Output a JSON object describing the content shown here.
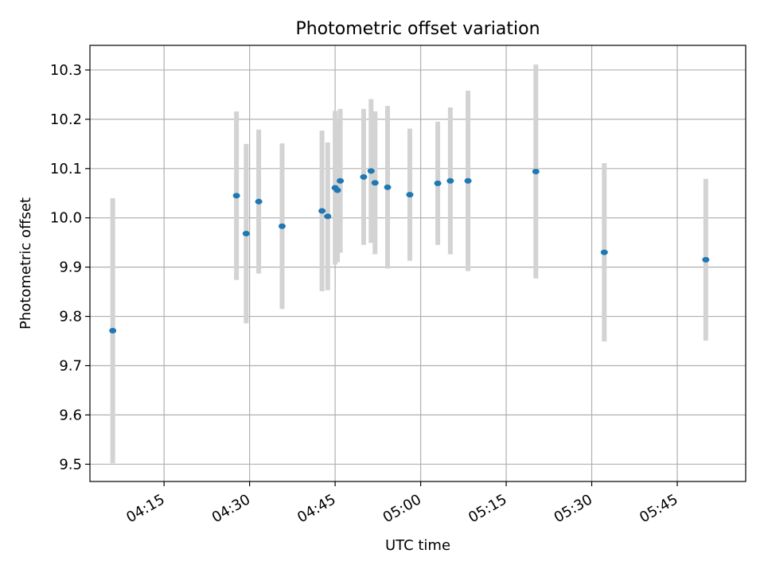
{
  "chart_data": {
    "type": "scatter",
    "title": "Photometric offset variation",
    "xlabel": "UTC time",
    "ylabel": "Photometric offset",
    "grid": true,
    "x_is_time": true,
    "xlim": [
      "04:02",
      "05:57"
    ],
    "ylim": [
      9.465,
      10.35
    ],
    "x_ticks": [
      "04:15",
      "04:30",
      "04:45",
      "05:00",
      "05:15",
      "05:30",
      "05:45"
    ],
    "y_ticks": [
      "9.5",
      "9.6",
      "9.7",
      "9.8",
      "9.9",
      "10.0",
      "10.1",
      "10.2",
      "10.3"
    ],
    "colors": {
      "point": "#1f77b4",
      "errorbar": "#d3d3d3",
      "grid": "#b0b0b0"
    },
    "points": [
      {
        "x": "04:06",
        "y": 9.771,
        "yerr": 0.269
      },
      {
        "x": "04:27.7",
        "y": 10.045,
        "yerr": 0.171
      },
      {
        "x": "04:29.4",
        "y": 9.968,
        "yerr": 0.182
      },
      {
        "x": "04:31.6",
        "y": 10.033,
        "yerr": 0.146
      },
      {
        "x": "04:35.7",
        "y": 9.983,
        "yerr": 0.168
      },
      {
        "x": "04:42.7",
        "y": 10.014,
        "yerr": 0.163
      },
      {
        "x": "04:43.7",
        "y": 10.003,
        "yerr": 0.15
      },
      {
        "x": "04:45.0",
        "y": 10.061,
        "yerr": 0.156
      },
      {
        "x": "04:45.4",
        "y": 10.056,
        "yerr": 0.146
      },
      {
        "x": "04:45.9",
        "y": 10.075,
        "yerr": 0.146
      },
      {
        "x": "04:50.0",
        "y": 10.083,
        "yerr": 0.138
      },
      {
        "x": "04:51.3",
        "y": 10.095,
        "yerr": 0.146
      },
      {
        "x": "04:52.0",
        "y": 10.071,
        "yerr": 0.145
      },
      {
        "x": "04:54.2",
        "y": 10.062,
        "yerr": 0.165
      },
      {
        "x": "04:58.1",
        "y": 10.047,
        "yerr": 0.134
      },
      {
        "x": "05:03.0",
        "y": 10.07,
        "yerr": 0.125
      },
      {
        "x": "05:05.2",
        "y": 10.075,
        "yerr": 0.149
      },
      {
        "x": "05:08.3",
        "y": 10.075,
        "yerr": 0.183
      },
      {
        "x": "05:20.2",
        "y": 10.094,
        "yerr": 0.217
      },
      {
        "x": "05:32.2",
        "y": 9.93,
        "yerr": 0.181
      },
      {
        "x": "05:50.0",
        "y": 9.915,
        "yerr": 0.164
      }
    ]
  }
}
